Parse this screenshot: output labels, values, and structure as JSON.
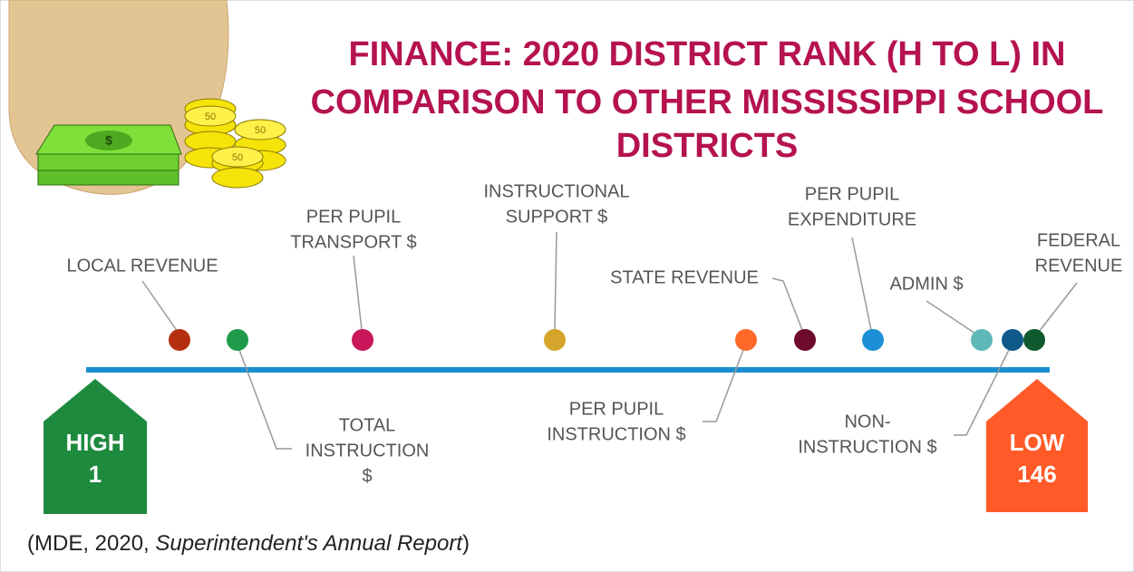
{
  "title": [
    "FINANCE: 2020 DISTRICT RANK (H TO L) IN",
    "COMPARISON TO OTHER MISSISSIPPI SCHOOL",
    "DISTRICTS"
  ],
  "coin_label": "50",
  "bill_label": "$",
  "high": [
    "HIGH",
    "1"
  ],
  "low": [
    "LOW",
    "146"
  ],
  "nodes": [
    {
      "label": [
        "LOCAL REVENUE"
      ]
    },
    {
      "label": [
        "TOTAL",
        "INSTRUCTION",
        "$"
      ]
    },
    {
      "label": [
        "PER PUPIL",
        "TRANSPORT $"
      ]
    },
    {
      "label": [
        "INSTRUCTIONAL",
        "SUPPORT $"
      ]
    },
    {
      "label": [
        "PER PUPIL",
        "INSTRUCTION $"
      ]
    },
    {
      "label": [
        "STATE  REVENUE"
      ]
    },
    {
      "label": [
        "PER PUPIL",
        "EXPENDITURE"
      ]
    },
    {
      "label": [
        "ADMIN $"
      ]
    },
    {
      "label": [
        "NON-",
        "INSTRUCTION $"
      ]
    },
    {
      "label": [
        "FEDERAL",
        "REVENUE"
      ]
    }
  ],
  "source": {
    "before": "(MDE,  2020, ",
    "italic": "Superintendent's Annual Report",
    "after": ")"
  }
}
